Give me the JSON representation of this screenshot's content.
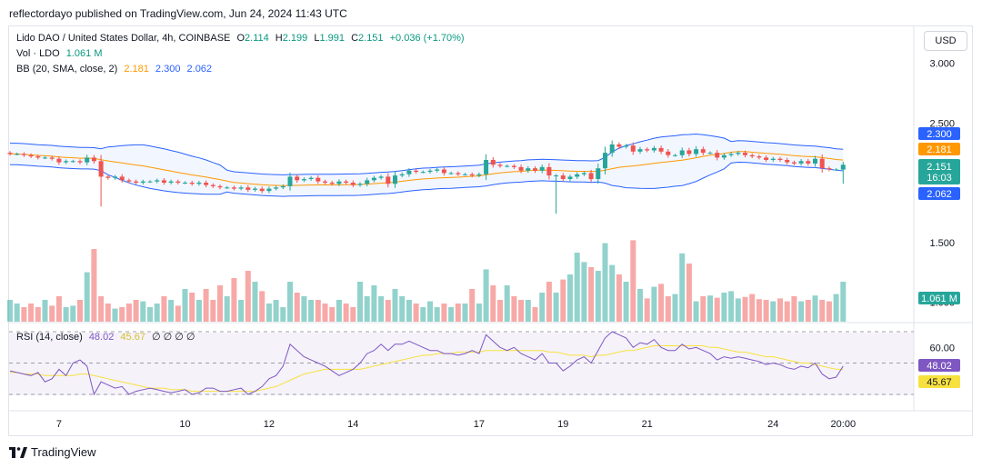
{
  "caption": "reflectordayo published on TradingView.com, Jun 24, 2024 11:43 UTC",
  "legend": {
    "symbol": "Lido DAO / United States Dollar, 4h, COINBASE",
    "o_label": "O",
    "o": "2.114",
    "h_label": "H",
    "h": "2.199",
    "l_label": "L",
    "l": "1.991",
    "c_label": "C",
    "c": "2.151",
    "change": "+0.036 (+1.70%)",
    "vol_label": "Vol · LDO",
    "vol": "1.061 M",
    "bb_label": "BB (20, SMA, close, 2)",
    "bb_mid": "2.181",
    "bb_upper": "2.300",
    "bb_lower": "2.062",
    "rsi_label": "RSI (14, close)",
    "rsi": "48.02",
    "rsi_ma": "45.67",
    "rsi_extra": "∅ ∅ ∅ ∅"
  },
  "currency_button": "USD",
  "footer_brand": "TradingView",
  "colors": {
    "up": "#26a69a",
    "down": "#ef5350",
    "bb_basis": "#ff9800",
    "bb_band": "#2962ff",
    "rsi": "#7e57c2",
    "rsi_ma": "#f7e13f"
  },
  "chart_data": {
    "type": "candlestick",
    "price_axis": {
      "ticks": [
        "3.000",
        "2.500",
        "1.500",
        "1.000"
      ],
      "ylim": [
        0.9,
        3.2
      ]
    },
    "price_labels": {
      "upper": "2.300",
      "basis": "2.181",
      "last": "2.151",
      "countdown": "16:03",
      "lower": "2.062",
      "volume": "1.061 M"
    },
    "rsi_axis": {
      "ticks": [
        "60.00"
      ],
      "levels": [
        70,
        50,
        30
      ],
      "last": "48.02",
      "ma_last": "45.67"
    },
    "x_ticks": [
      "7",
      "10",
      "12",
      "14",
      "17",
      "19",
      "21",
      "24",
      "20:00"
    ],
    "x_tick_index": [
      7,
      25,
      37,
      49,
      67,
      79,
      91,
      109,
      119
    ],
    "closes": [
      2.24,
      2.24,
      2.23,
      2.22,
      2.21,
      2.21,
      2.2,
      2.17,
      2.18,
      2.18,
      2.17,
      2.21,
      2.18,
      2.05,
      2.04,
      2.05,
      2.02,
      2.01,
      2.0,
      2.01,
      2.01,
      2.02,
      2.0,
      2.01,
      2.0,
      2.0,
      1.99,
      2.0,
      1.98,
      1.97,
      1.96,
      1.96,
      1.95,
      1.96,
      1.94,
      1.95,
      1.93,
      1.95,
      1.96,
      1.97,
      2.05,
      2.02,
      2.03,
      2.04,
      2.01,
      2.0,
      1.99,
      2.01,
      2.0,
      1.98,
      1.99,
      2.02,
      2.04,
      2.05,
      1.99,
      2.06,
      2.07,
      2.1,
      2.09,
      2.09,
      2.1,
      2.11,
      2.08,
      2.08,
      2.07,
      2.07,
      2.06,
      2.07,
      2.19,
      2.15,
      2.14,
      2.14,
      2.13,
      2.1,
      2.12,
      2.1,
      2.13,
      2.06,
      2.06,
      2.03,
      2.05,
      2.07,
      2.08,
      2.03,
      2.12,
      2.25,
      2.32,
      2.3,
      2.31,
      2.26,
      2.28,
      2.27,
      2.29,
      2.26,
      2.23,
      2.23,
      2.27,
      2.24,
      2.28,
      2.25,
      2.25,
      2.21,
      2.23,
      2.24,
      2.25,
      2.23,
      2.22,
      2.21,
      2.19,
      2.2,
      2.19,
      2.17,
      2.16,
      2.18,
      2.16,
      2.2,
      2.12,
      2.11,
      2.11,
      2.15
    ],
    "volumes": [
      0.3,
      0.25,
      0.2,
      0.25,
      0.2,
      0.3,
      0.22,
      0.35,
      0.2,
      0.22,
      0.3,
      0.68,
      1.0,
      0.35,
      0.25,
      0.18,
      0.2,
      0.25,
      0.3,
      0.28,
      0.2,
      0.25,
      0.35,
      0.3,
      0.22,
      0.45,
      0.4,
      0.3,
      0.45,
      0.3,
      0.5,
      0.35,
      0.6,
      0.3,
      0.7,
      0.55,
      0.42,
      0.25,
      0.3,
      0.2,
      0.55,
      0.4,
      0.35,
      0.3,
      0.3,
      0.25,
      0.2,
      0.3,
      0.25,
      0.2,
      0.55,
      0.35,
      0.5,
      0.35,
      0.3,
      0.45,
      0.35,
      0.3,
      0.25,
      0.2,
      0.28,
      0.2,
      0.25,
      0.2,
      0.25,
      0.25,
      0.45,
      0.25,
      0.72,
      0.5,
      0.3,
      0.5,
      0.35,
      0.3,
      0.3,
      0.2,
      0.4,
      0.55,
      0.4,
      0.58,
      0.65,
      0.95,
      0.82,
      0.75,
      0.7,
      1.08,
      0.78,
      0.65,
      0.55,
      1.12,
      0.45,
      0.32,
      0.48,
      0.52,
      0.35,
      0.38,
      0.94,
      0.8,
      0.28,
      0.35,
      0.36,
      0.33,
      0.4,
      0.42,
      0.32,
      0.34,
      0.38,
      0.31,
      0.3,
      0.28,
      0.32,
      0.28,
      0.35,
      0.28,
      0.3,
      0.36,
      0.3,
      0.28,
      0.38,
      0.55
    ],
    "rsi": [
      45,
      44,
      43,
      42,
      44,
      38,
      40,
      46,
      42,
      50,
      52,
      48,
      30,
      38,
      36,
      34,
      35,
      30,
      32,
      33,
      34,
      33,
      32,
      31,
      32,
      33,
      30,
      31,
      34,
      34,
      32,
      32,
      33,
      34,
      30,
      32,
      35,
      40,
      42,
      48,
      62,
      58,
      54,
      52,
      50,
      48,
      45,
      42,
      44,
      46,
      50,
      56,
      58,
      62,
      58,
      62,
      62,
      64,
      62,
      60,
      58,
      58,
      56,
      56,
      55,
      56,
      58,
      56,
      68,
      64,
      60,
      58,
      60,
      56,
      54,
      52,
      56,
      50,
      50,
      45,
      48,
      52,
      54,
      50,
      58,
      66,
      70,
      68,
      66,
      60,
      63,
      62,
      65,
      60,
      58,
      58,
      62,
      59,
      60,
      58,
      56,
      52,
      54,
      53,
      54,
      53,
      52,
      51,
      49,
      50,
      49,
      47,
      46,
      48,
      47,
      50,
      43,
      40,
      41,
      48
    ],
    "rsi_ma": [
      44,
      44,
      43,
      43,
      43,
      42,
      42,
      42,
      42,
      42,
      43,
      43,
      42,
      41,
      40,
      39,
      38,
      37,
      36,
      35,
      34,
      34,
      34,
      33,
      33,
      33,
      32,
      32,
      32,
      32,
      32,
      32,
      32,
      32,
      32,
      32,
      33,
      34,
      35,
      37,
      39,
      41,
      43,
      44,
      45,
      46,
      46,
      46,
      46,
      46,
      46,
      47,
      48,
      49,
      50,
      51,
      52,
      53,
      54,
      55,
      55,
      56,
      56,
      56,
      57,
      57,
      57,
      57,
      58,
      58,
      58,
      58,
      58,
      58,
      58,
      58,
      58,
      57,
      57,
      56,
      55,
      55,
      55,
      54,
      55,
      55,
      56,
      57,
      58,
      58,
      59,
      60,
      61,
      61,
      61,
      61,
      61,
      61,
      61,
      61,
      60,
      60,
      59,
      58,
      57,
      57,
      56,
      55,
      54,
      54,
      53,
      52,
      51,
      50,
      50,
      49,
      48,
      47,
      46,
      46
    ]
  }
}
